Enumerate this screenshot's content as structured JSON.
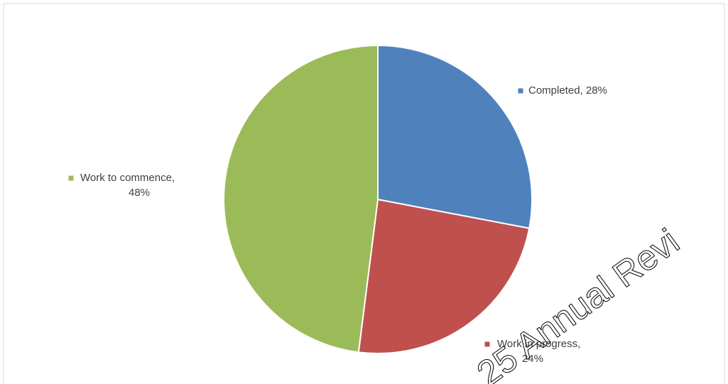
{
  "chart_data": {
    "type": "pie",
    "values": [
      28,
      24,
      48
    ],
    "value_labels": [
      "Completed, 28%",
      "Work in progress, 24%",
      "Work to commence, 48%"
    ],
    "colors": [
      "#4f81bd",
      "#c0504d",
      "#9bbb59"
    ],
    "watermark": "25 Annual Revi"
  }
}
